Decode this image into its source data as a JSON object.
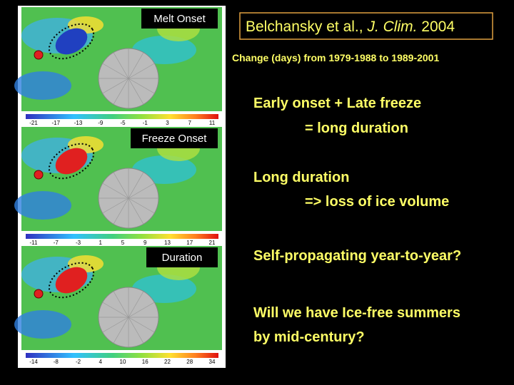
{
  "citation": {
    "authors": "Belchansky et al.,",
    "journal": "J. Clim.",
    "year": "2004"
  },
  "subtitle": "Change (days) from 1979-1988 to 1989-2001",
  "panels": [
    {
      "title": "Melt Onset",
      "ticks": [
        -21,
        -17,
        -13,
        -9,
        -5,
        -1,
        3,
        7,
        11
      ]
    },
    {
      "title": "Freeze Onset",
      "ticks": [
        -11,
        -7,
        -3,
        1,
        5,
        9,
        13,
        17,
        21
      ]
    },
    {
      "title": "Duration",
      "ticks": [
        -14,
        -8,
        -2,
        4,
        10,
        16,
        22,
        28,
        34
      ]
    }
  ],
  "bullets": [
    {
      "line": "Early onset + Late freeze",
      "indent": false
    },
    {
      "line": "= long duration",
      "indent": true
    },
    {
      "line": "Long duration",
      "indent": false
    },
    {
      "line": "=> loss of ice volume",
      "indent": true
    },
    {
      "line": "Self-propagating year-to-year?",
      "indent": false
    },
    {
      "line": "Will we have Ice-free summers",
      "indent": false
    },
    {
      "line": "by mid-century?",
      "indent": false
    }
  ]
}
